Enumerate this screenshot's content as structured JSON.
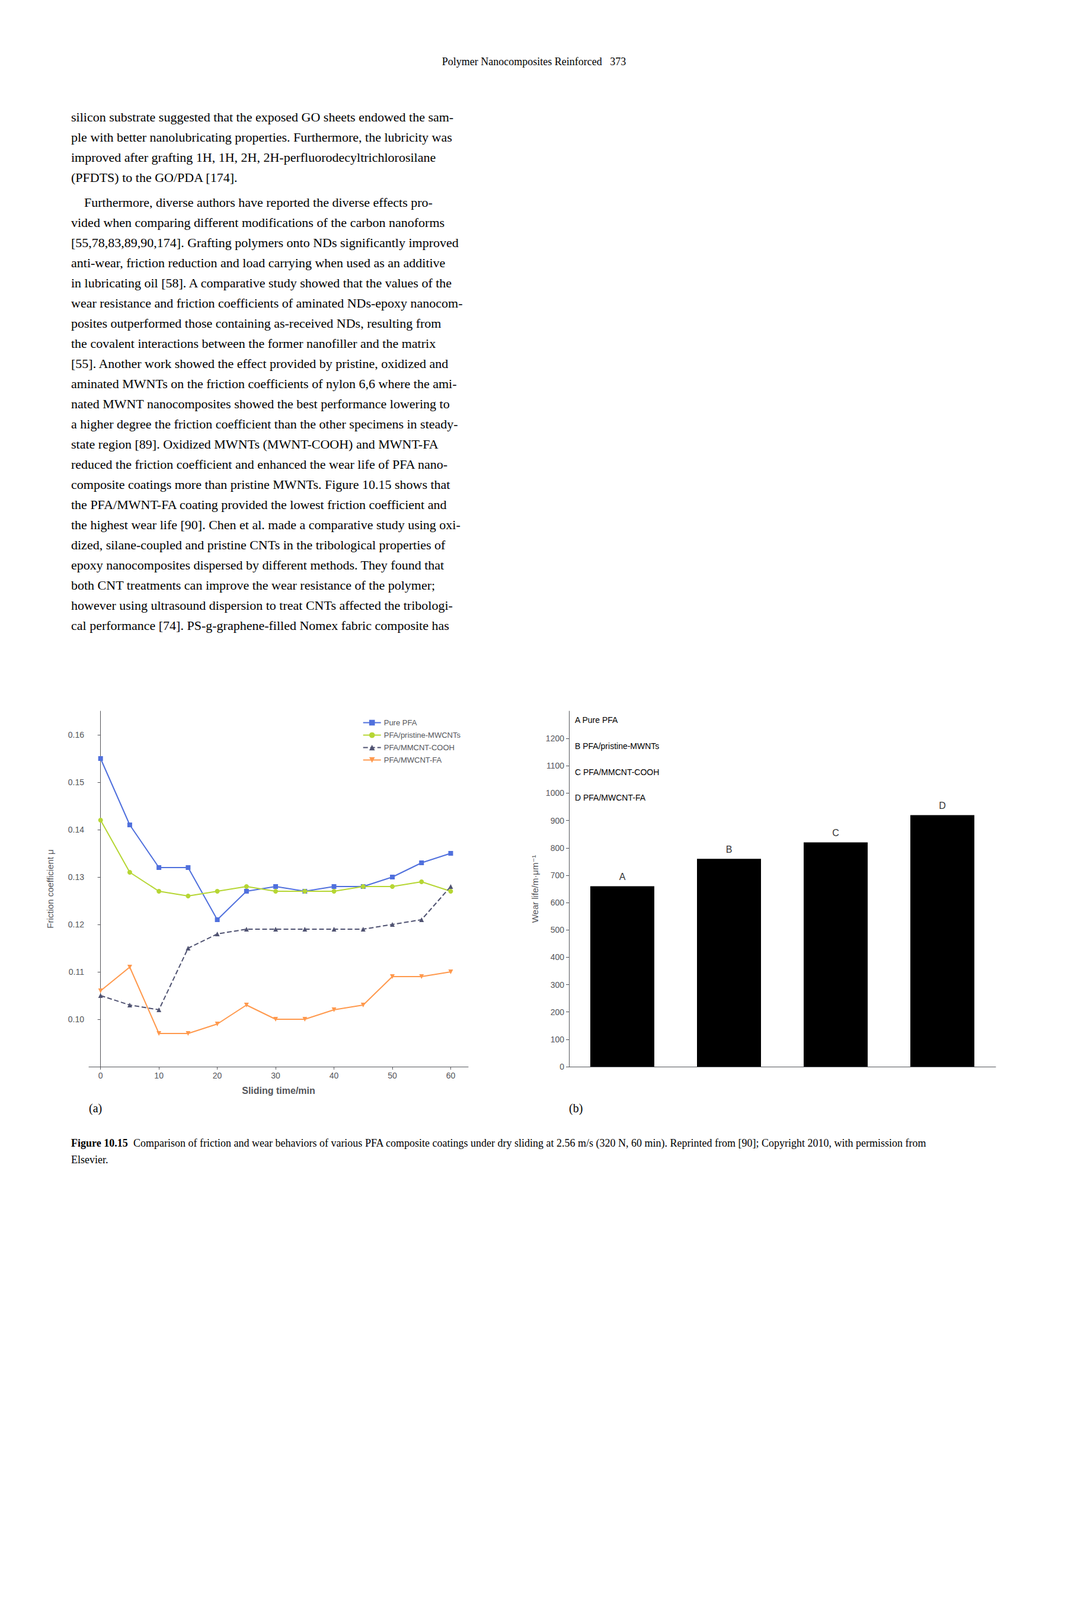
{
  "page_header": "Polymer Nanocomposites Reinforced   373",
  "body_text": [
    "silicon substrate suggested that the exposed GO sheets endowed the sam-\nple with better nanolubricating properties. Furthermore, the lubricity was\nimproved after grafting 1H, 1H, 2H, 2H-perfluorodecyltrichlorosilane\n(PFDTS) to the GO/PDA [174].",
    "    Furthermore, diverse authors have reported the diverse effects pro-\nvided when comparing different modifications of the carbon nanoforms\n[55,78,83,89,90,174]. Grafting polymers onto NDs significantly improved\nanti-wear, friction reduction and load carrying when used as an additive\nin lubricating oil [58]. A comparative study showed that the values of the\nwear resistance and friction coefficients of aminated NDs-epoxy nanocom-\nposites outperformed those containing as-received NDs, resulting from\nthe covalent interactions between the former nanofiller and the matrix\n[55]. Another work showed the effect provided by pristine, oxidized and\naminated MWNTs on the friction coefficients of nylon 6,6 where the ami-\nnated MWNT nanocomposites showed the best performance lowering to\na higher degree the friction coefficient than the other specimens in steady-\nstate region [89]. Oxidized MWNTs (MWNT-COOH) and MWNT-FA\nreduced the friction coefficient and enhanced the wear life of PFA nano-\ncomposite coatings more than pristine MWNTs. Figure 10.15 shows that\nthe PFA/MWNT-FA coating provided the lowest friction coefficient and\nthe highest wear life [90]. Chen et al. made a comparative study using oxi-\ndized, silane-coupled and pristine CNTs in the tribological properties of\nepoxy nanocomposites dispersed by different methods. They found that\nboth CNT treatments can improve the wear resistance of the polymer;\nhowever using ultrasound dispersion to treat CNTs affected the tribologi-\ncal performance [74]. PS-g-graphene-filled Nomex fabric composite has"
  ],
  "caption_label": "Figure 10.15",
  "caption": "Comparison of friction and wear behaviors of various PFA composite coatings under dry sliding at 2.56 m/s (320 N, 60 min). Reprinted from [90]; Copyright 2010, with permission from Elsevier.",
  "chart_data": [
    {
      "type": "line",
      "xlabel": "Sliding time/min",
      "ylabel": "Friction coefficient μ",
      "x": [
        0,
        5,
        10,
        15,
        20,
        25,
        30,
        35,
        40,
        45,
        50,
        55,
        60
      ],
      "series": [
        {
          "name": "Pure PFA",
          "marker": "square",
          "line_style": "solid",
          "values": [
            0.155,
            0.141,
            0.132,
            0.132,
            0.121,
            0.127,
            0.128,
            0.127,
            0.128,
            0.128,
            0.13,
            0.133,
            0.135
          ]
        },
        {
          "name": "PFA/pristine-MWCNTs",
          "marker": "circle",
          "line_style": "solid",
          "values": [
            0.142,
            0.131,
            0.127,
            0.126,
            0.127,
            0.128,
            0.127,
            0.127,
            0.127,
            0.128,
            0.128,
            0.129,
            0.127
          ]
        },
        {
          "name": "PFA/MMCNT-COOH",
          "marker": "triangle-up",
          "line_style": "dashed",
          "values": [
            0.105,
            0.103,
            0.102,
            0.115,
            0.118,
            0.119,
            0.119,
            0.119,
            0.119,
            0.119,
            0.12,
            0.121,
            0.128
          ]
        },
        {
          "name": "PFA/MWCNT-FA",
          "marker": "triangle-down",
          "line_style": "solid",
          "values": [
            0.106,
            0.111,
            0.097,
            0.097,
            0.099,
            0.103,
            0.1,
            0.1,
            0.102,
            0.103,
            0.109,
            0.109,
            0.11
          ]
        }
      ],
      "xlim": [
        -2,
        63
      ],
      "xticks": [
        0,
        10,
        20,
        30,
        40,
        50,
        60
      ],
      "ylim": [
        0.09,
        0.165
      ],
      "yticks": [
        {
          "value": 0.1,
          "label": "0.10"
        },
        0.11,
        0.12,
        0.13,
        0.14,
        0.15,
        0.16
      ],
      "legend": "upper right",
      "grid": false,
      "panel_label": "(a)"
    },
    {
      "type": "bar",
      "ylabel": "Wear life/m·μm⁻¹",
      "categories": [
        "A",
        "B",
        "C",
        "D"
      ],
      "values": [
        660,
        760,
        820,
        920
      ],
      "color": "#000000",
      "ylim": [
        0,
        1300
      ],
      "yticks": [
        0,
        100,
        200,
        300,
        400,
        500,
        600,
        700,
        800,
        900,
        1000,
        1100,
        1200
      ],
      "tick_labels": "y",
      "grid": false,
      "annotations": [
        "A Pure PFA",
        "B PFA/pristine-MWNTs",
        "C PFA/MMCNT-COOH",
        "D PFA/MWCNT-FA"
      ],
      "panel_label": "(b)"
    }
  ]
}
